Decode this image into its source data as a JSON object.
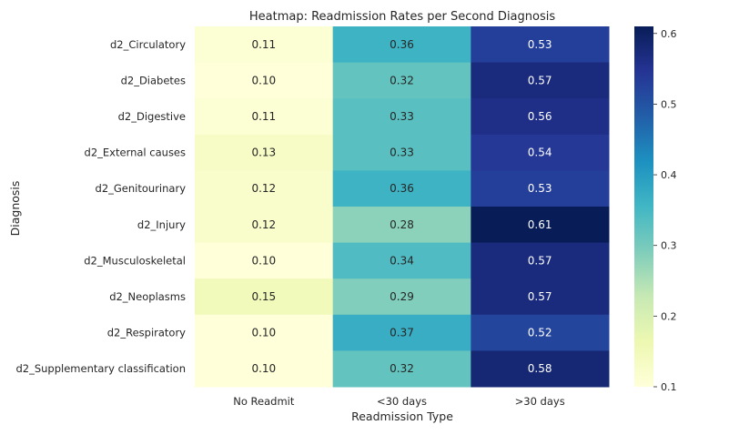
{
  "chart_data": {
    "type": "heatmap",
    "title": "Heatmap: Readmission Rates per Second Diagnosis",
    "xlabel": "Readmission Type",
    "ylabel": "Diagnosis",
    "columns": [
      "No Readmit",
      "<30 days",
      ">30 days"
    ],
    "rows": [
      "d2_Circulatory",
      "d2_Diabetes",
      "d2_Digestive",
      "d2_External causes",
      "d2_Genitourinary",
      "d2_Injury",
      "d2_Musculoskeletal",
      "d2_Neoplasms",
      "d2_Respiratory",
      "d2_Supplementary classification"
    ],
    "values": [
      [
        0.11,
        0.36,
        0.53
      ],
      [
        0.1,
        0.32,
        0.57
      ],
      [
        0.11,
        0.33,
        0.56
      ],
      [
        0.13,
        0.33,
        0.54
      ],
      [
        0.12,
        0.36,
        0.53
      ],
      [
        0.12,
        0.28,
        0.61
      ],
      [
        0.1,
        0.34,
        0.57
      ],
      [
        0.15,
        0.29,
        0.57
      ],
      [
        0.1,
        0.37,
        0.52
      ],
      [
        0.1,
        0.32,
        0.58
      ]
    ],
    "value_labels": [
      [
        "0.11",
        "0.36",
        "0.53"
      ],
      [
        "0.10",
        "0.32",
        "0.57"
      ],
      [
        "0.11",
        "0.33",
        "0.56"
      ],
      [
        "0.13",
        "0.33",
        "0.54"
      ],
      [
        "0.12",
        "0.36",
        "0.53"
      ],
      [
        "0.12",
        "0.28",
        "0.61"
      ],
      [
        "0.10",
        "0.34",
        "0.57"
      ],
      [
        "0.15",
        "0.29",
        "0.57"
      ],
      [
        "0.10",
        "0.37",
        "0.52"
      ],
      [
        "0.10",
        "0.32",
        "0.58"
      ]
    ],
    "colormap": "YlGnBu",
    "color_range": [
      0.1,
      0.61
    ],
    "colorbar_ticks": [
      0.1,
      0.2,
      0.3,
      0.4,
      0.5,
      0.6
    ],
    "colorbar_tick_labels": [
      "0.1",
      "0.2",
      "0.3",
      "0.4",
      "0.5",
      "0.6"
    ],
    "grid": false,
    "annotated": true
  }
}
